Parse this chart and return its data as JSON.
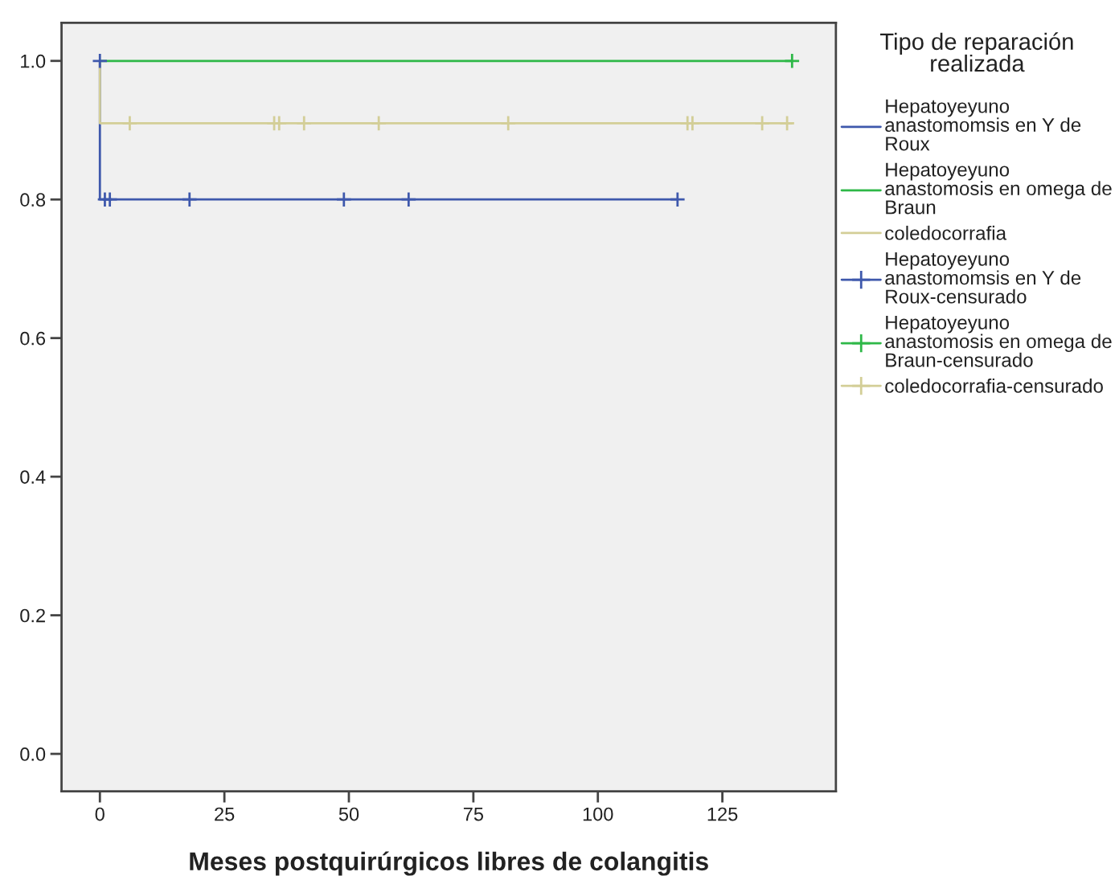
{
  "chart_data": {
    "type": "step",
    "xlabel": "Meses postquirúrgicos libres de colangitis",
    "legend_title": "Tipo de reparación\nrealizada",
    "xlim": [
      -7.7,
      147.8
    ],
    "xticks": [
      0,
      25,
      50,
      75,
      100,
      125
    ],
    "ylim": [
      -0.054,
      1.055
    ],
    "yticks": [
      {
        "value": 0,
        "label": "0.0"
      },
      {
        "value": 0.2,
        "label": "0.2"
      },
      {
        "value": 0.4,
        "label": "0.4"
      },
      {
        "value": 0.6,
        "label": "0.6"
      },
      {
        "value": 0.8,
        "label": "0.8"
      },
      {
        "value": 1,
        "label": "1.0"
      }
    ],
    "grid": false,
    "legend": "top right",
    "series": [
      {
        "name": "Hepatoyeyuno\nanastomomsis en Y de\nRoux",
        "color": "#3e58ac",
        "x": [
          0,
          0,
          116
        ],
        "values": [
          1,
          0.8,
          0.8
        ]
      },
      {
        "name": "Hepatoyeyuno\nanastomosis en omega de\nBraun",
        "color": "#2eb848",
        "x": [
          0,
          139
        ],
        "values": [
          1,
          1
        ]
      },
      {
        "name": "coledocorrafia",
        "color": "#d3ce97",
        "x": [
          0,
          0,
          139
        ],
        "values": [
          1,
          0.91,
          0.91
        ]
      },
      {
        "name": "Hepatoyeyuno\nanastomomsis en Y de\nRoux-censurado",
        "type": "scatter",
        "marker": "cross",
        "color": "#3e58ac",
        "x": [
          0,
          1,
          2,
          18,
          49,
          62,
          116
        ],
        "values": [
          1,
          0.8,
          0.8,
          0.8,
          0.8,
          0.8,
          0.8
        ]
      },
      {
        "name": "Hepatoyeyuno\nanastomosis en omega de\nBraun-censurado",
        "type": "scatter",
        "marker": "cross",
        "color": "#2eb848",
        "x": [
          139
        ],
        "values": [
          1
        ]
      },
      {
        "name": "coledocorrafia-censurado",
        "type": "scatter",
        "marker": "cross",
        "color": "#d3ce97",
        "x": [
          6,
          35,
          36,
          41,
          56,
          82,
          118,
          119,
          133,
          138
        ],
        "values": [
          0.91,
          0.91,
          0.91,
          0.91,
          0.91,
          0.91,
          0.91,
          0.91,
          0.91,
          0.91
        ]
      }
    ]
  }
}
